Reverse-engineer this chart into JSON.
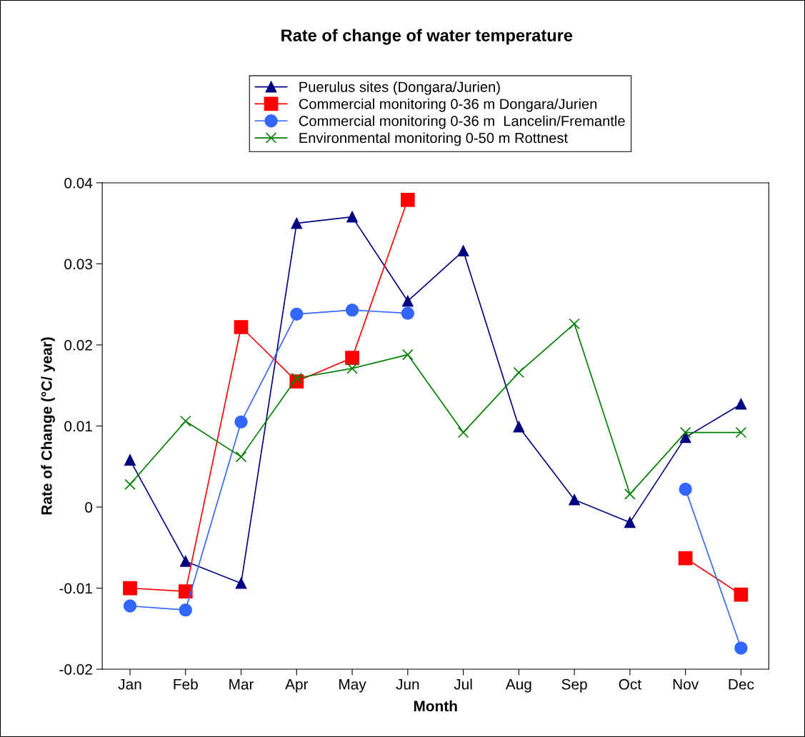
{
  "chart_data": {
    "type": "line",
    "title": "Rate of change of water temperature",
    "xlabel": "Month",
    "ylabel": "Rate of Change (°C/ year)",
    "categories": [
      "Jan",
      "Feb",
      "Mar",
      "Apr",
      "May",
      "Jun",
      "Jul",
      "Aug",
      "Sep",
      "Oct",
      "Nov",
      "Dec"
    ],
    "series": [
      {
        "name": "Puerulus sites (Dongara/Jurien)",
        "color": "#000080",
        "marker": "triangle",
        "values": [
          0.0058,
          -0.0067,
          -0.0094,
          0.035,
          0.0358,
          0.0254,
          0.0316,
          0.0099,
          0.0009,
          -0.0019,
          0.0086,
          0.0127
        ]
      },
      {
        "name": "Commercial monitoring 0-36 m Dongara/Jurien",
        "color": "#ff0000",
        "marker": "square",
        "values": [
          -0.01,
          -0.0104,
          0.0222,
          0.0155,
          0.0184,
          0.0379,
          null,
          null,
          null,
          null,
          -0.0063,
          -0.0108
        ]
      },
      {
        "name": "Commercial monitoring 0-36 m  Lancelin/Fremantle",
        "color": "#3366ff",
        "marker": "circle",
        "values": [
          -0.0122,
          -0.0127,
          0.0105,
          0.0238,
          0.0243,
          0.0239,
          null,
          null,
          null,
          null,
          0.0022,
          -0.0174
        ]
      },
      {
        "name": "Environmental monitoring 0-50 m Rottnest",
        "color": "#008000",
        "marker": "cross",
        "values": [
          0.0028,
          0.0106,
          0.0062,
          0.0159,
          0.0171,
          0.0188,
          0.0092,
          0.0166,
          0.0226,
          0.0016,
          0.0092,
          0.0092
        ]
      }
    ],
    "ylim": [
      -0.02,
      0.04
    ],
    "yticks": [
      -0.02,
      -0.01,
      0,
      0.01,
      0.02,
      0.03,
      0.04
    ],
    "grid": false,
    "legend": "top",
    "line_style": "solid"
  }
}
